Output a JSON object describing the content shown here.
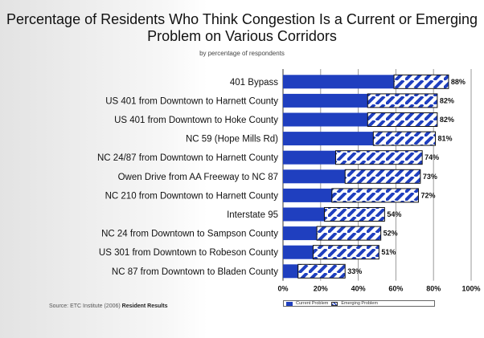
{
  "chart_data": {
    "type": "bar",
    "orientation": "horizontal",
    "stacked": true,
    "title": "Percentage of Residents Who Think Congestion Is a Current or Emerging Problem on Various Corridors",
    "subtitle": "by percentage of respondents",
    "categories": [
      "401 Bypass",
      "US 401 from Downtown to Harnett County",
      "US 401 from Downtown to Hoke County",
      "NC 59 (Hope Mills Rd)",
      "NC 24/87 from Downtown to Harnett County",
      "Owen Drive from AA Freeway to NC 87",
      "NC 210 from Downtown to Harnett County",
      "Interstate 95",
      "NC 24 from Downtown to Sampson County",
      "US 301 from Downtown to Robeson County",
      "NC 87 from Downtown to Bladen County"
    ],
    "series": [
      {
        "name": "Current Problem",
        "values": [
          59,
          45,
          45,
          48,
          28,
          33,
          26,
          22,
          18,
          16,
          8
        ]
      },
      {
        "name": "Emerging Problem",
        "values": [
          29,
          37,
          37,
          33,
          46,
          40,
          46,
          32,
          34,
          35,
          25
        ]
      }
    ],
    "totals": [
      88,
      82,
      82,
      81,
      74,
      73,
      72,
      54,
      52,
      51,
      33
    ],
    "total_labels": [
      "88%",
      "82%",
      "82%",
      "81%",
      "74%",
      "73%",
      "72%",
      "54%",
      "52%",
      "51%",
      "33%"
    ],
    "xlim": [
      0,
      100
    ],
    "x_ticks": [
      "0%",
      "20%",
      "40%",
      "60%",
      "80%",
      "100%"
    ],
    "grid": true,
    "legend_position": "bottom",
    "colors": {
      "current": "#1f3fbf",
      "emerging_hatch": "#1f3fbf",
      "emerging_bg": "#ffffff"
    }
  },
  "legend": {
    "current_label": "Current Problem",
    "emerging_label": "Emerging Problem"
  },
  "source": {
    "prefix": "Source: ETC Institute (2006)",
    "bold": "Resident Results"
  }
}
